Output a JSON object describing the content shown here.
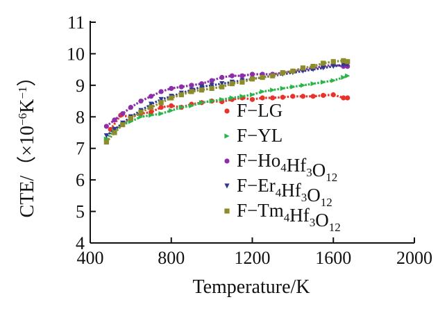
{
  "chart_data": {
    "type": "scatter",
    "xlabel": "Temperature/K",
    "ylabel_main": "CTE/",
    "ylabel_unit_open": "（×10",
    "ylabel_unit_exp1": "−6",
    "ylabel_unit_mid": "K",
    "ylabel_unit_exp2": "−1",
    "ylabel_unit_close": "）",
    "xlim": [
      400,
      2000
    ],
    "ylim": [
      4,
      11
    ],
    "xticks": [
      "400",
      "800",
      "1200",
      "1600",
      "2000"
    ],
    "yticks": [
      "4",
      "5",
      "6",
      "7",
      "8",
      "9",
      "10",
      "11"
    ],
    "legend_position": "center-right",
    "series": [
      {
        "name": "F-LG",
        "legend_parts": [
          {
            "t": "F−LG",
            "sub": false
          }
        ],
        "color": "#e8332a",
        "marker": "circle",
        "x": [
          500,
          550,
          600,
          650,
          700,
          750,
          800,
          850,
          900,
          950,
          1000,
          1050,
          1100,
          1150,
          1200,
          1250,
          1300,
          1350,
          1400,
          1450,
          1500,
          1550,
          1600,
          1650,
          1670
        ],
        "y": [
          7.6,
          8.05,
          8.0,
          8.1,
          8.15,
          8.3,
          8.35,
          8.3,
          8.4,
          8.45,
          8.5,
          8.48,
          8.55,
          8.6,
          8.55,
          8.6,
          8.6,
          8.62,
          8.65,
          8.65,
          8.65,
          8.68,
          8.7,
          8.6,
          8.6
        ]
      },
      {
        "name": "F-YL",
        "legend_parts": [
          {
            "t": "F−YL",
            "sub": false
          }
        ],
        "color": "#2bb44a",
        "marker": "triangle-right",
        "x": [
          480,
          520,
          560,
          600,
          650,
          700,
          750,
          800,
          850,
          900,
          950,
          1000,
          1050,
          1100,
          1150,
          1200,
          1250,
          1300,
          1350,
          1400,
          1450,
          1500,
          1550,
          1600,
          1650,
          1670
        ],
        "y": [
          7.3,
          7.6,
          7.75,
          7.85,
          8.0,
          8.05,
          8.1,
          8.2,
          8.3,
          8.35,
          8.45,
          8.5,
          8.55,
          8.6,
          8.65,
          8.7,
          8.8,
          8.85,
          8.9,
          8.95,
          9.0,
          9.05,
          9.1,
          9.15,
          9.25,
          9.3
        ]
      },
      {
        "name": "F-Ho4Hf3O12",
        "legend_parts": [
          {
            "t": "F−Ho",
            "sub": false
          },
          {
            "t": "4",
            "sub": true
          },
          {
            "t": "Hf",
            "sub": false
          },
          {
            "t": "3",
            "sub": true
          },
          {
            "t": "O",
            "sub": false
          },
          {
            "t": "12",
            "sub": true
          }
        ],
        "color": "#8b2fa8",
        "marker": "circle",
        "x": [
          480,
          520,
          560,
          600,
          650,
          700,
          750,
          800,
          850,
          900,
          950,
          1000,
          1050,
          1100,
          1150,
          1200,
          1250,
          1300,
          1350,
          1400,
          1450,
          1500,
          1550,
          1600,
          1650,
          1670
        ],
        "y": [
          7.7,
          7.9,
          8.1,
          8.3,
          8.5,
          8.65,
          8.8,
          8.9,
          8.95,
          9.0,
          9.05,
          9.15,
          9.25,
          9.3,
          9.3,
          9.35,
          9.35,
          9.35,
          9.4,
          9.45,
          9.5,
          9.55,
          9.6,
          9.65,
          9.6,
          9.6
        ]
      },
      {
        "name": "F-Er4Hf3O12",
        "legend_parts": [
          {
            "t": "F−Er",
            "sub": false
          },
          {
            "t": "4",
            "sub": true
          },
          {
            "t": "Hf",
            "sub": false
          },
          {
            "t": "3",
            "sub": true
          },
          {
            "t": "O",
            "sub": false
          },
          {
            "t": "12",
            "sub": true
          }
        ],
        "color": "#2d3a8f",
        "marker": "triangle-down",
        "x": [
          480,
          520,
          560,
          600,
          650,
          700,
          750,
          800,
          850,
          900,
          950,
          1000,
          1050,
          1100,
          1150,
          1200,
          1250,
          1300,
          1350,
          1400,
          1450,
          1500,
          1550,
          1600,
          1650,
          1670
        ],
        "y": [
          7.4,
          7.6,
          7.8,
          8.0,
          8.2,
          8.4,
          8.55,
          8.65,
          8.75,
          8.85,
          8.95,
          9.0,
          9.05,
          9.1,
          9.15,
          9.2,
          9.25,
          9.3,
          9.35,
          9.4,
          9.45,
          9.5,
          9.55,
          9.6,
          9.65,
          9.65
        ]
      },
      {
        "name": "F-Tm4Hf3O12",
        "legend_parts": [
          {
            "t": "F−Tm",
            "sub": false
          },
          {
            "t": "4",
            "sub": true
          },
          {
            "t": "Hf",
            "sub": false
          },
          {
            "t": "3",
            "sub": true
          },
          {
            "t": "O",
            "sub": false
          },
          {
            "t": "12",
            "sub": true
          }
        ],
        "color": "#8c8c2c",
        "marker": "square",
        "x": [
          480,
          520,
          560,
          600,
          650,
          700,
          750,
          800,
          850,
          900,
          950,
          1000,
          1050,
          1100,
          1150,
          1200,
          1250,
          1300,
          1350,
          1400,
          1450,
          1500,
          1550,
          1600,
          1650,
          1670
        ],
        "y": [
          7.2,
          7.5,
          7.75,
          7.95,
          8.15,
          8.3,
          8.45,
          8.6,
          8.7,
          8.8,
          8.85,
          8.9,
          8.95,
          9.05,
          9.1,
          9.2,
          9.25,
          9.3,
          9.4,
          9.45,
          9.55,
          9.6,
          9.7,
          9.75,
          9.78,
          9.75
        ]
      }
    ]
  }
}
